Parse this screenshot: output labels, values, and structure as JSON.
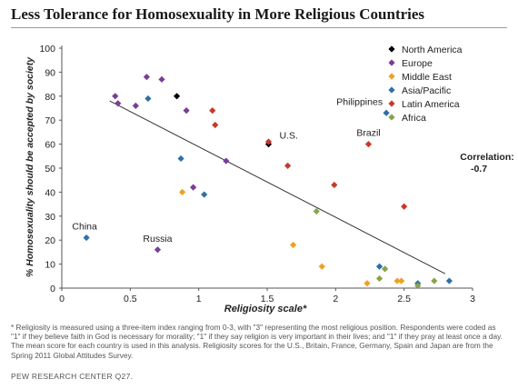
{
  "title": "Less Tolerance for Homosexuality in More Religious Countries",
  "footnote": "* Religiosity is measured using a three-item index ranging from 0-3, with \"3\" representing the most religious position. Respondents were coded as \"1\" if they believe faith in God is necessary for morality; \"1\" if they say religion is very important in their lives; and \"1\" if they pray at least once a day. The mean score for each country is used in this analysis. Religiosity scores for the U.S., Britain, France, Germany, Spain and Japan are from the Spring 2011 Global Attitudes Survey.",
  "source": "PEW RESEARCH CENTER Q27.",
  "chart_data": {
    "type": "scatter",
    "xlabel": "Religiosity scale*",
    "ylabel": "% Homosexuality should be accepted by society",
    "xlim": [
      0,
      3
    ],
    "ylim": [
      0,
      100
    ],
    "xticks": [
      0,
      0.5,
      1,
      1.5,
      2,
      2.5,
      3
    ],
    "yticks": [
      0,
      10,
      20,
      30,
      40,
      50,
      60,
      70,
      80,
      90,
      100
    ],
    "grid": false,
    "legend_position": "top-right",
    "annotation": {
      "line1": "Correlation:",
      "line2": "-0.7"
    },
    "trendline": {
      "x": [
        0.35,
        2.8
      ],
      "y": [
        78,
        6
      ]
    },
    "series": [
      {
        "name": "North America",
        "color": "#000000",
        "points": [
          {
            "x": 0.84,
            "y": 80
          },
          {
            "x": 1.51,
            "y": 60,
            "label": "U.S."
          }
        ]
      },
      {
        "name": "Europe",
        "color": "#7a3d96",
        "points": [
          {
            "x": 0.39,
            "y": 80
          },
          {
            "x": 0.41,
            "y": 77
          },
          {
            "x": 0.54,
            "y": 76
          },
          {
            "x": 0.62,
            "y": 88
          },
          {
            "x": 0.73,
            "y": 87
          },
          {
            "x": 0.91,
            "y": 74
          },
          {
            "x": 0.96,
            "y": 42
          },
          {
            "x": 1.2,
            "y": 53
          },
          {
            "x": 0.7,
            "y": 16,
            "label": "Russia"
          }
        ]
      },
      {
        "name": "Middle East",
        "color": "#f0a020",
        "points": [
          {
            "x": 0.88,
            "y": 40
          },
          {
            "x": 1.69,
            "y": 18
          },
          {
            "x": 1.9,
            "y": 9
          },
          {
            "x": 2.23,
            "y": 2
          },
          {
            "x": 2.45,
            "y": 3
          },
          {
            "x": 2.48,
            "y": 3
          }
        ]
      },
      {
        "name": "Asia/Pacific",
        "color": "#2f6fa8",
        "points": [
          {
            "x": 0.18,
            "y": 21,
            "label": "China"
          },
          {
            "x": 0.63,
            "y": 79
          },
          {
            "x": 0.87,
            "y": 54
          },
          {
            "x": 1.04,
            "y": 39
          },
          {
            "x": 2.37,
            "y": 73,
            "label": "Philippines"
          },
          {
            "x": 2.32,
            "y": 9
          },
          {
            "x": 2.6,
            "y": 2
          },
          {
            "x": 2.83,
            "y": 3
          }
        ]
      },
      {
        "name": "Latin America",
        "color": "#c8392b",
        "points": [
          {
            "x": 1.1,
            "y": 74
          },
          {
            "x": 1.12,
            "y": 68
          },
          {
            "x": 1.51,
            "y": 61
          },
          {
            "x": 1.65,
            "y": 51
          },
          {
            "x": 1.99,
            "y": 43
          },
          {
            "x": 2.24,
            "y": 60,
            "label": "Brazil"
          },
          {
            "x": 2.5,
            "y": 34
          }
        ]
      },
      {
        "name": "Africa",
        "color": "#8aa34a",
        "points": [
          {
            "x": 1.86,
            "y": 32
          },
          {
            "x": 2.32,
            "y": 4
          },
          {
            "x": 2.36,
            "y": 8
          },
          {
            "x": 2.6,
            "y": 1
          },
          {
            "x": 2.72,
            "y": 3
          }
        ]
      }
    ]
  }
}
